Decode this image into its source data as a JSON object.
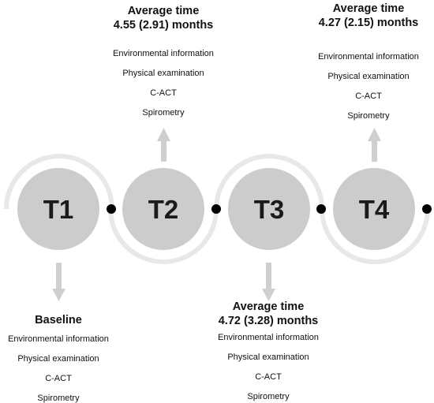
{
  "colors": {
    "node_fill": "#cccccc",
    "ring": "#e8e8e8",
    "arrow": "#cfcfcf",
    "connector_dot": "#000000",
    "text": "#111111"
  },
  "timepoints": [
    {
      "id": "T1",
      "arrow_direction": "down",
      "ring": "top",
      "title_lines": [
        "Baseline"
      ],
      "items": [
        "Environmental information",
        "Physical examination",
        "C-ACT",
        "Spirometry"
      ]
    },
    {
      "id": "T2",
      "arrow_direction": "up",
      "ring": "bottom",
      "title_lines": [
        "Average time",
        "4.55 (2.91) months"
      ],
      "items": [
        "Environmental information",
        "Physical examination",
        "C-ACT",
        "Spirometry"
      ]
    },
    {
      "id": "T3",
      "arrow_direction": "down",
      "ring": "top",
      "title_lines": [
        "Average time",
        "4.72 (3.28) months"
      ],
      "items": [
        "Environmental information",
        "Physical examination",
        "C-ACT",
        "Spirometry"
      ]
    },
    {
      "id": "T4",
      "arrow_direction": "up",
      "ring": "bottom",
      "title_lines": [
        "Average time",
        "4.27 (2.15) months"
      ],
      "items": [
        "Environmental information",
        "Physical examination",
        "C-ACT",
        "Spirometry"
      ]
    }
  ]
}
